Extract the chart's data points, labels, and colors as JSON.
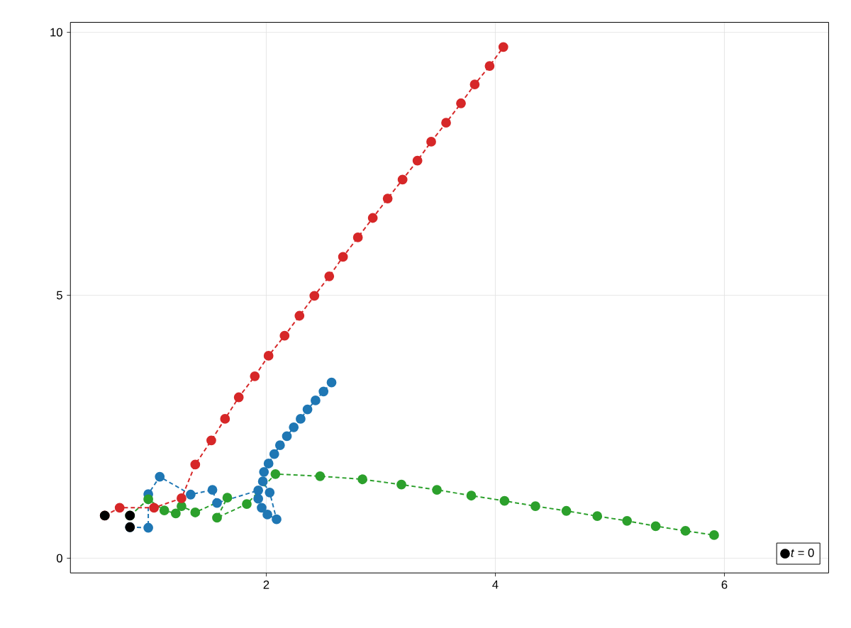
{
  "chart_data": {
    "type": "line",
    "marker": "circle",
    "line_style": "dashed",
    "grid": true,
    "legend": "bottom right",
    "xlim": [
      0.29,
      6.91
    ],
    "ylim": [
      -0.28,
      10.19
    ],
    "xticks": [
      2,
      4,
      6
    ],
    "yticks": [
      0,
      5,
      10
    ],
    "series": [
      {
        "color": "#1f77b4",
        "x": [
          0.81,
          0.97,
          0.97,
          1.07,
          1.34,
          1.53,
          1.57,
          1.93,
          1.93,
          1.96,
          2.01,
          2.09,
          2.03,
          1.97,
          1.98,
          2.02,
          2.07,
          2.12,
          2.18,
          2.24,
          2.3,
          2.36,
          2.43,
          2.5,
          2.57
        ],
        "values": [
          0.59,
          0.58,
          1.22,
          1.55,
          1.21,
          1.3,
          1.05,
          1.29,
          1.13,
          0.96,
          0.83,
          0.74,
          1.25,
          1.46,
          1.64,
          1.8,
          1.98,
          2.15,
          2.32,
          2.49,
          2.65,
          2.83,
          3.0,
          3.17,
          3.34
        ]
      },
      {
        "color": "#2ca02c",
        "x": [
          0.81,
          0.97,
          1.11,
          1.21,
          1.26,
          1.38,
          1.66,
          1.57,
          1.83,
          2.08,
          2.47,
          2.84,
          3.18,
          3.49,
          3.79,
          4.08,
          4.35,
          4.62,
          4.89,
          5.15,
          5.4,
          5.66,
          5.91
        ],
        "values": [
          0.81,
          1.12,
          0.91,
          0.85,
          0.99,
          0.87,
          1.15,
          0.77,
          1.03,
          1.6,
          1.56,
          1.5,
          1.4,
          1.3,
          1.19,
          1.09,
          0.99,
          0.9,
          0.8,
          0.71,
          0.61,
          0.52,
          0.44
        ]
      },
      {
        "color": "#d62728",
        "x": [
          0.59,
          0.72,
          1.02,
          1.26,
          1.38,
          1.52,
          1.64,
          1.76,
          1.9,
          2.02,
          2.16,
          2.29,
          2.42,
          2.55,
          2.67,
          2.8,
          2.93,
          3.06,
          3.19,
          3.32,
          3.44,
          3.57,
          3.7,
          3.82,
          3.95,
          4.07
        ],
        "values": [
          0.81,
          0.96,
          0.96,
          1.14,
          1.78,
          2.24,
          2.65,
          3.06,
          3.46,
          3.85,
          4.23,
          4.61,
          4.99,
          5.36,
          5.73,
          6.1,
          6.47,
          6.84,
          7.2,
          7.56,
          7.92,
          8.28,
          8.65,
          9.01,
          9.36,
          9.72
        ]
      },
      {
        "type": "scatter",
        "name": "*t* = 0",
        "color": "#000000",
        "x": [
          0.59,
          0.81,
          0.81
        ],
        "values": [
          0.81,
          0.81,
          0.59
        ]
      }
    ]
  }
}
